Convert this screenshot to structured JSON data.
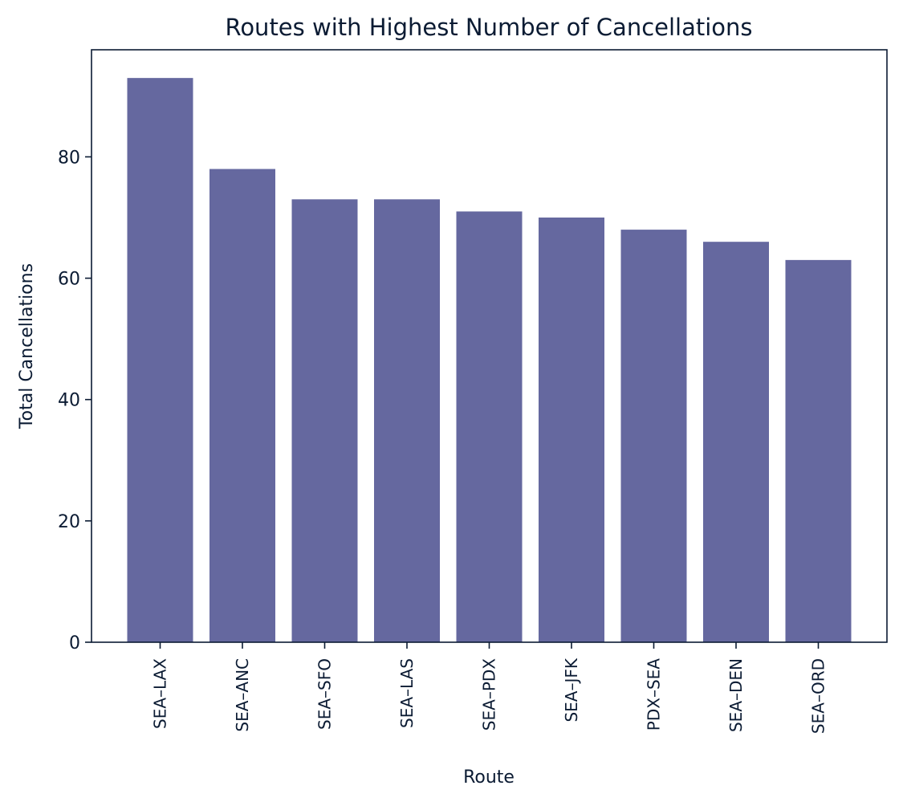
{
  "chart_data": {
    "type": "bar",
    "title": "Routes with Highest Number of Cancellations",
    "xlabel": "Route",
    "ylabel": "Total Cancellations",
    "categories": [
      "SEA–LAX",
      "SEA–ANC",
      "SEA–SFO",
      "SEA–LAS",
      "SEA–PDX",
      "SEA–JFK",
      "PDX–SEA",
      "SEA–DEN",
      "SEA–ORD"
    ],
    "values": [
      93,
      78,
      73,
      73,
      71,
      70,
      68,
      66,
      63
    ],
    "ylim": [
      0,
      97.65
    ],
    "yticks": [
      0,
      20,
      40,
      60,
      80
    ],
    "bar_color": "#65689f",
    "axis_color": "#0b1b33",
    "grid": false,
    "legend": "none"
  }
}
